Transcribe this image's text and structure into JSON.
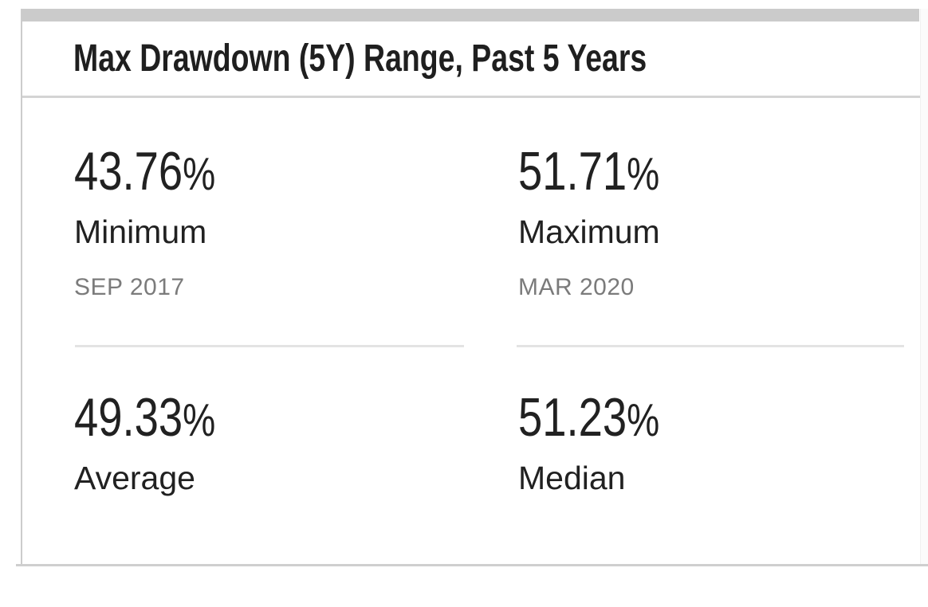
{
  "card": {
    "title": "Max Drawdown (5Y) Range, Past 5 Years",
    "stats": [
      {
        "value": "43.76",
        "unit": "%",
        "label": "Minimum",
        "date": "SEP 2017"
      },
      {
        "value": "51.71",
        "unit": "%",
        "label": "Maximum",
        "date": "MAR 2020"
      },
      {
        "value": "49.33",
        "unit": "%",
        "label": "Average"
      },
      {
        "value": "51.23",
        "unit": "%",
        "label": "Median"
      }
    ],
    "colors": {
      "text_primary": "#212121",
      "text_secondary": "#7b7b7b",
      "separator_bar": "#cbcbcb",
      "header_border": "#d4d4d4",
      "stat_divider": "#e3e3e3",
      "card_border": "#cccccc"
    }
  }
}
